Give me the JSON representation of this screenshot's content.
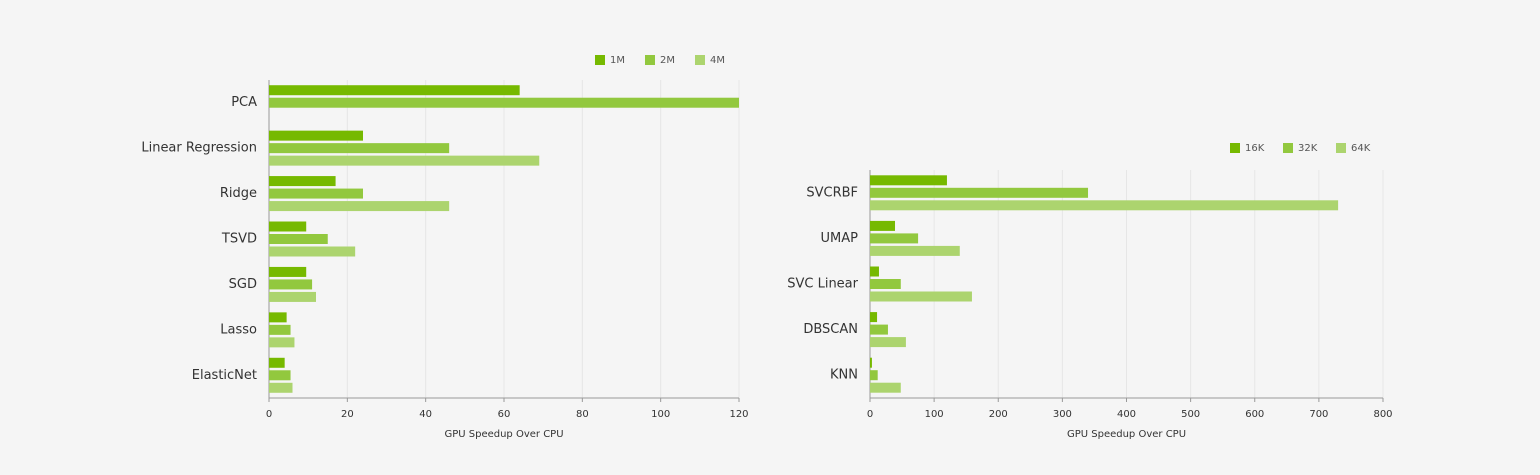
{
  "chart_data": [
    {
      "type": "hbar",
      "x_label": "GPU Speedup Over CPU",
      "categories": [
        "PCA",
        "Linear Regression",
        "Ridge",
        "TSVD",
        "SGD",
        "Lasso",
        "ElasticNet"
      ],
      "series": [
        {
          "name": "1M",
          "color": "#76b900",
          "values": [
            64,
            24,
            17,
            9.5,
            9.5,
            4.5,
            4
          ]
        },
        {
          "name": "2M",
          "color": "#92c83e",
          "values": [
            120,
            46,
            24,
            15,
            11,
            5.5,
            5.5
          ]
        },
        {
          "name": "4M",
          "color": "#acd46e",
          "values": [
            null,
            69,
            46,
            22,
            12,
            6.5,
            6
          ]
        }
      ],
      "xlim": [
        0,
        120
      ],
      "xticks": [
        0,
        20,
        40,
        60,
        80,
        100,
        120
      ],
      "grid": true,
      "legend": "top"
    },
    {
      "type": "hbar",
      "x_label": "GPU Speedup Over CPU",
      "categories": [
        "SVCRBF",
        "UMAP",
        "SVC Linear",
        "DBSCAN",
        "KNN"
      ],
      "series": [
        {
          "name": "16K",
          "color": "#76b900",
          "values": [
            120,
            39,
            14,
            11,
            3
          ]
        },
        {
          "name": "32K",
          "color": "#92c83e",
          "values": [
            340,
            75,
            48,
            28,
            12
          ]
        },
        {
          "name": "64K",
          "color": "#acd46e",
          "values": [
            730,
            140,
            159,
            56,
            48
          ]
        }
      ],
      "xlim": [
        0,
        800
      ],
      "xticks": [
        0,
        100,
        200,
        300,
        400,
        500,
        600,
        700,
        800
      ],
      "grid": true,
      "legend": "top"
    }
  ]
}
